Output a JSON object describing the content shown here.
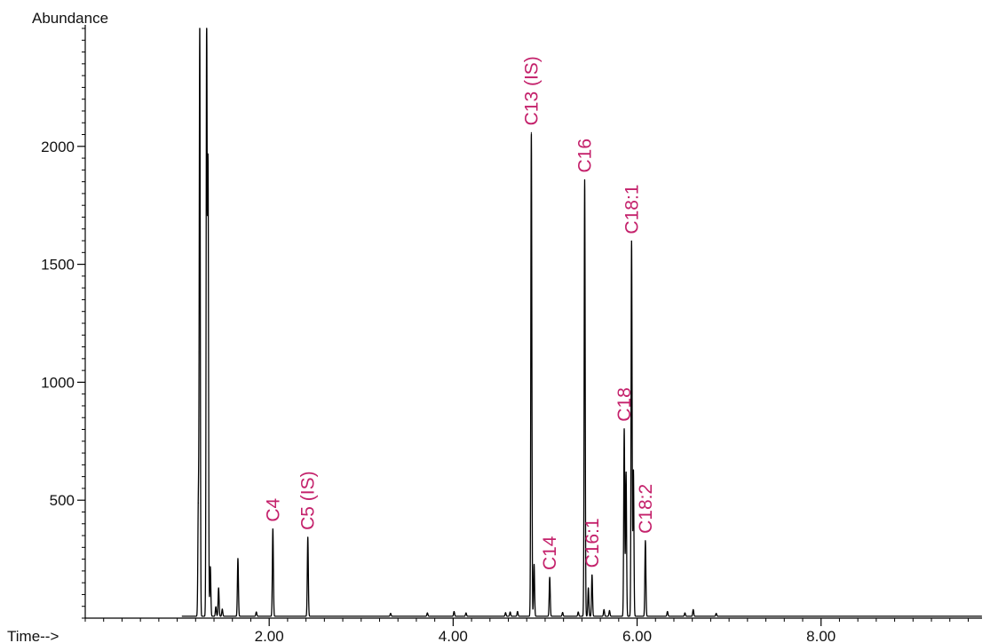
{
  "chart_data": {
    "type": "line",
    "title": "",
    "xlabel": "Time-->",
    "ylabel": "Abundance",
    "xlim": [
      0.0,
      9.75
    ],
    "ylim": [
      0,
      2500
    ],
    "x_tick_values": [
      2.0,
      4.0,
      6.0,
      8.0
    ],
    "x_tick_labels": [
      "2.00",
      "4.00",
      "6.00",
      "8.00"
    ],
    "y_tick_values": [
      500,
      1000,
      1500,
      2000
    ],
    "y_tick_labels": [
      "500",
      "1000",
      "1500",
      "2000"
    ],
    "grid": false,
    "baseline": 8,
    "series": [
      {
        "line_color": "#000000",
        "peaks": [
          {
            "x": 1.23,
            "y": 480
          },
          {
            "x": 1.245,
            "y": 2500
          },
          {
            "x": 1.32,
            "y": 2500
          },
          {
            "x": 1.335,
            "y": 1890
          },
          {
            "x": 1.36,
            "y": 210
          },
          {
            "x": 1.42,
            "y": 40
          },
          {
            "x": 1.45,
            "y": 120
          },
          {
            "x": 1.49,
            "y": 30
          },
          {
            "x": 1.66,
            "y": 245
          },
          {
            "x": 1.86,
            "y": 18
          },
          {
            "x": 2.04,
            "y": 370
          },
          {
            "x": 2.42,
            "y": 335
          },
          {
            "x": 3.32,
            "y": 12
          },
          {
            "x": 3.72,
            "y": 14
          },
          {
            "x": 4.01,
            "y": 20
          },
          {
            "x": 4.14,
            "y": 14
          },
          {
            "x": 4.57,
            "y": 15
          },
          {
            "x": 4.62,
            "y": 18
          },
          {
            "x": 4.7,
            "y": 20
          },
          {
            "x": 4.85,
            "y": 2050
          },
          {
            "x": 4.88,
            "y": 220
          },
          {
            "x": 5.05,
            "y": 165
          },
          {
            "x": 5.19,
            "y": 16
          },
          {
            "x": 5.36,
            "y": 18
          },
          {
            "x": 5.43,
            "y": 1850
          },
          {
            "x": 5.47,
            "y": 120
          },
          {
            "x": 5.51,
            "y": 175
          },
          {
            "x": 5.64,
            "y": 28
          },
          {
            "x": 5.7,
            "y": 24
          },
          {
            "x": 5.86,
            "y": 795
          },
          {
            "x": 5.88,
            "y": 610
          },
          {
            "x": 5.94,
            "y": 1590
          },
          {
            "x": 5.96,
            "y": 620
          },
          {
            "x": 6.09,
            "y": 320
          },
          {
            "x": 6.33,
            "y": 20
          },
          {
            "x": 6.52,
            "y": 14
          },
          {
            "x": 6.61,
            "y": 28
          },
          {
            "x": 6.86,
            "y": 12
          }
        ]
      }
    ],
    "annotations": [
      {
        "text": "C4",
        "x": 2.04
      },
      {
        "text": "C5 (IS)",
        "x": 2.42
      },
      {
        "text": "C13 (IS)",
        "x": 4.85
      },
      {
        "text": "C14",
        "x": 5.05
      },
      {
        "text": "C16",
        "x": 5.43
      },
      {
        "text": "C16:1",
        "x": 5.51
      },
      {
        "text": "C18",
        "x": 5.86
      },
      {
        "text": "C18:1",
        "x": 5.94
      },
      {
        "text": "C18:2",
        "x": 6.09
      }
    ],
    "annotation_color": "#C4216B"
  }
}
